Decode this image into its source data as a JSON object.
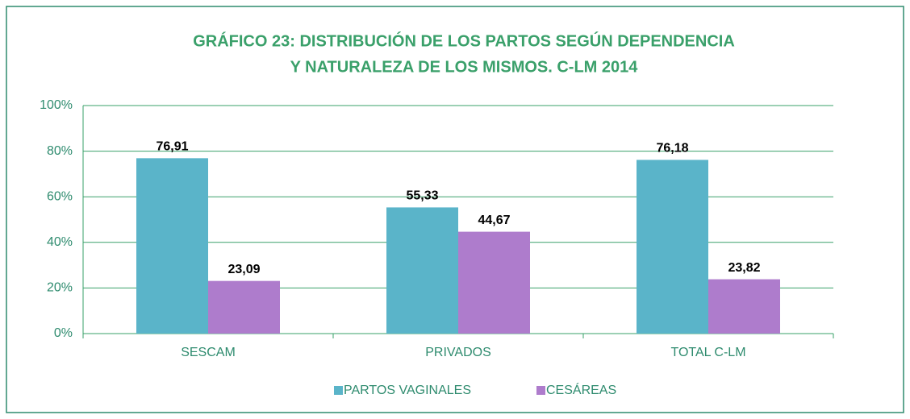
{
  "chart_data": {
    "type": "bar",
    "title": [
      "GRÁFICO 23: DISTRIBUCIÓN DE LOS PARTOS SEGÚN DEPENDENCIA",
      "Y NATURALEZA DE LOS MISMOS. C-LM 2014"
    ],
    "categories": [
      "SESCAM",
      "PRIVADOS",
      "TOTAL C-LM"
    ],
    "series": [
      {
        "name": "PARTOS VAGINALES",
        "color": "#5ab4c9",
        "values": [
          76.91,
          55.33,
          76.18
        ],
        "value_labels": [
          "76,91",
          "55,33",
          "76,18"
        ]
      },
      {
        "name": "CESÁREAS",
        "color": "#ae7ccc",
        "values": [
          23.09,
          44.67,
          23.82
        ],
        "value_labels": [
          "23,09",
          "44,67",
          "23,82"
        ]
      }
    ],
    "ylim": [
      0,
      100
    ],
    "yticks": [
      {
        "value": 0,
        "label": "0%"
      },
      {
        "value": 20,
        "label": "20%"
      },
      {
        "value": 40,
        "label": "40%"
      },
      {
        "value": 60,
        "label": "60%"
      },
      {
        "value": 80,
        "label": "80%"
      },
      {
        "value": 100,
        "label": "100%"
      }
    ],
    "grid": true,
    "legend": "bottom"
  }
}
